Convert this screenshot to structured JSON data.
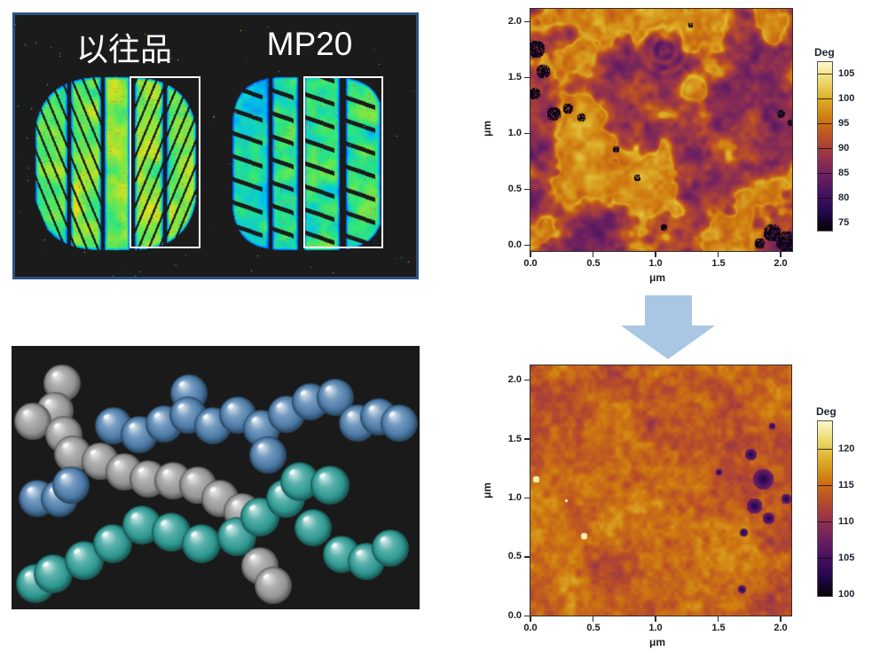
{
  "slide": {
    "background": "#ffffff"
  },
  "tire_panel": {
    "left_label": "以往品",
    "right_label": "MP20",
    "background": "#1b1b1b",
    "border_color": "#2b5181",
    "highlight_box_color": "#ffffff",
    "heat_palette": [
      "#0020c8",
      "#0070ff",
      "#00c8e6",
      "#2ee67c",
      "#8ce63c",
      "#e1e11e",
      "#ffa000",
      "#ff3200"
    ],
    "description": "Thermal/wear maps of two tire treads; left tire (previous product) shows more hot green-yellow-red areas, right tire (MP20) is cooler blue-green"
  },
  "molecule_panel": {
    "background": "#1a1a1a",
    "chain_colors": {
      "gray": "#9b9b9b",
      "blue": "#4e7fae",
      "teal": "#2f9e96"
    },
    "description": "3D bead-chain rendering of three polymer chains (gray, blue, teal spheres)"
  },
  "flow_arrow": {
    "color": "#a9c6e2",
    "direction": "down"
  },
  "chart_data": [
    {
      "id": "afm-top",
      "type": "heatmap",
      "xlabel": "μm",
      "ylabel": "μm",
      "x_ticks": [
        "0.0",
        "0.5",
        "1.0",
        "1.5",
        "2.0"
      ],
      "y_ticks": [
        "2.0",
        "1.5",
        "1.0",
        "0.5",
        "0.0"
      ],
      "xlim": [
        0.0,
        2.1
      ],
      "ylim": [
        0.0,
        2.1
      ],
      "grid": false,
      "colorbar": {
        "title": "Deg",
        "ticks": [
          "105",
          "100",
          "95",
          "90",
          "85",
          "80",
          "75"
        ],
        "range": [
          73,
          107
        ],
        "colormap": [
          "#060208",
          "#23084d",
          "#471260",
          "#6e2160",
          "#97344a",
          "#bb4f27",
          "#cf7a10",
          "#dcad28",
          "#ecd96b",
          "#fbf8cf"
        ]
      },
      "description": "AFM phase image before: two-phase morphology, gold domains (~95-105 deg) and purple domains (~80-88 deg) with scattered black pits"
    },
    {
      "id": "afm-bottom",
      "type": "heatmap",
      "xlabel": "μm",
      "ylabel": "μm",
      "x_ticks": [
        "0.0",
        "0.5",
        "1.0",
        "1.5",
        "2.0"
      ],
      "y_ticks": [
        "2.0",
        "1.5",
        "1.0",
        "0.5",
        "0.0"
      ],
      "xlim": [
        0.0,
        2.1
      ],
      "ylim": [
        0.0,
        2.1
      ],
      "grid": false,
      "colorbar": {
        "title": "Deg",
        "ticks": [
          "120",
          "115",
          "110",
          "105",
          "100"
        ],
        "range": [
          100,
          124
        ],
        "colormap": [
          "#060208",
          "#23084d",
          "#471260",
          "#6e2160",
          "#97344a",
          "#bb4f27",
          "#cf7a10",
          "#dcad28",
          "#ecd96b",
          "#fbf8cf"
        ]
      },
      "description": "AFM phase image after: uniform single-phase orange morphology (~110-115 deg) with a few dark pits on the right side"
    }
  ]
}
